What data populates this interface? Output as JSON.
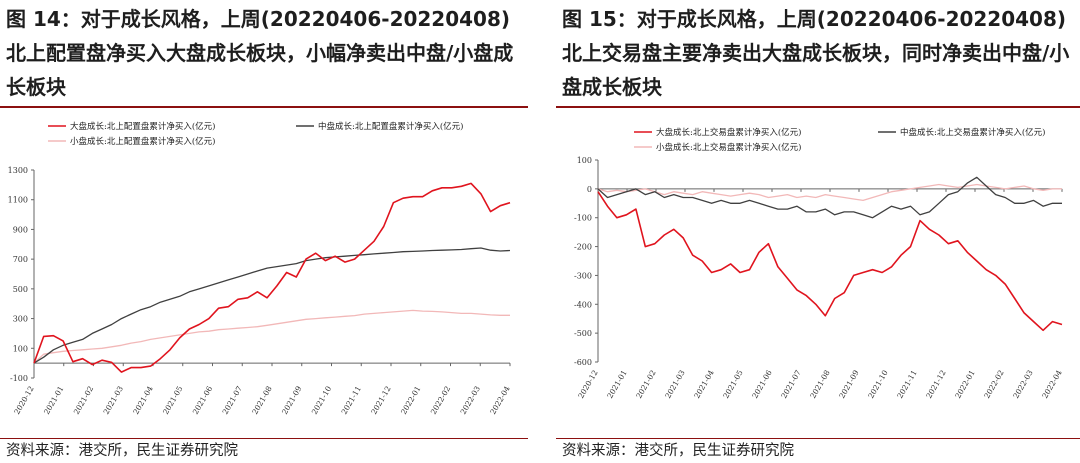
{
  "figures": [
    {
      "id": "fig14",
      "title": "图 14：对于成长风格，上周(20220406-20220408)北上配置盘净买入大盘成长板块，小幅净卖出中盘/小盘成长板块",
      "source": "资料来源：港交所，民生证券研究院"
    },
    {
      "id": "fig15",
      "title": "图 15：对于成长风格，上周(20220406-20220408)北上交易盘主要净卖出大盘成长板块，同时净卖出中盘/小盘成长板块",
      "source": "资料来源：港交所，民生证券研究院"
    }
  ],
  "chart_data": [
    {
      "type": "line",
      "xlabels": [
        "2020-12",
        "2021-01",
        "2021-02",
        "2021-03",
        "2021-04",
        "2021-05",
        "2021-06",
        "2021-07",
        "2021-08",
        "2021-09",
        "2021-10",
        "2021-11",
        "2021-12",
        "2022-01",
        "2022-02",
        "2022-03",
        "2022-04"
      ],
      "ylim": [
        -100,
        1300
      ],
      "yticks": [
        -100,
        100,
        300,
        500,
        700,
        900,
        1100,
        1300
      ],
      "legend_position": "top",
      "series": [
        {
          "name": "大盘成长:北上配置盘累计净买入(亿元)",
          "color": "#e0141e",
          "values": [
            0,
            180,
            185,
            150,
            10,
            30,
            -10,
            20,
            5,
            -60,
            -30,
            -30,
            -20,
            30,
            90,
            170,
            230,
            260,
            300,
            370,
            380,
            430,
            440,
            480,
            440,
            520,
            610,
            580,
            700,
            740,
            690,
            720,
            680,
            700,
            760,
            820,
            920,
            1080,
            1110,
            1120,
            1120,
            1160,
            1180,
            1180,
            1190,
            1210,
            1140,
            1020,
            1060,
            1080
          ]
        },
        {
          "name": "中盘成长:北上配置盘累计净买入(亿元)",
          "color": "#404040",
          "values": [
            0,
            40,
            90,
            120,
            140,
            160,
            200,
            230,
            260,
            300,
            330,
            360,
            380,
            410,
            430,
            450,
            480,
            500,
            520,
            540,
            560,
            580,
            600,
            620,
            640,
            650,
            660,
            670,
            690,
            700,
            710,
            715,
            720,
            725,
            730,
            735,
            740,
            745,
            750,
            752,
            755,
            758,
            760,
            762,
            765,
            770,
            775,
            760,
            755,
            758
          ]
        },
        {
          "name": "小盘成长:北上配置盘累计净买入(亿元)",
          "color": "#f2b8b8",
          "values": [
            0,
            60,
            70,
            80,
            85,
            90,
            95,
            100,
            110,
            120,
            135,
            145,
            160,
            170,
            180,
            190,
            200,
            210,
            215,
            225,
            230,
            235,
            240,
            245,
            255,
            265,
            275,
            285,
            295,
            300,
            305,
            310,
            315,
            320,
            330,
            335,
            340,
            345,
            350,
            355,
            350,
            348,
            345,
            340,
            335,
            335,
            330,
            325,
            322,
            322
          ]
        }
      ]
    },
    {
      "type": "line",
      "xlabels": [
        "2020-12",
        "2021-01",
        "2021-02",
        "2021-03",
        "2021-04",
        "2021-05",
        "2021-06",
        "2021-07",
        "2021-08",
        "2021-09",
        "2021-10",
        "2021-11",
        "2021-12",
        "2022-01",
        "2022-02",
        "2022-03",
        "2022-04"
      ],
      "ylim": [
        -600,
        100
      ],
      "yticks": [
        -600,
        -500,
        -400,
        -300,
        -200,
        -100,
        0,
        100
      ],
      "legend_position": "top",
      "series": [
        {
          "name": "大盘成长:北上交易盘累计净买入(亿元)",
          "color": "#e0141e",
          "values": [
            -10,
            -60,
            -100,
            -90,
            -70,
            -200,
            -190,
            -160,
            -140,
            -170,
            -230,
            -250,
            -290,
            -280,
            -260,
            -290,
            -280,
            -220,
            -190,
            -270,
            -310,
            -350,
            -370,
            -400,
            -440,
            -380,
            -360,
            -300,
            -290,
            -280,
            -290,
            -270,
            -230,
            -200,
            -110,
            -140,
            -160,
            -190,
            -180,
            -220,
            -250,
            -280,
            -300,
            -330,
            -380,
            -430,
            -460,
            -490,
            -460,
            -470
          ]
        },
        {
          "name": "中盘成长:北上交易盘累计净买入(亿元)",
          "color": "#404040",
          "values": [
            0,
            -30,
            -20,
            -10,
            0,
            -20,
            -10,
            -30,
            -20,
            -30,
            -30,
            -40,
            -50,
            -40,
            -50,
            -50,
            -40,
            -50,
            -60,
            -70,
            -70,
            -60,
            -80,
            -80,
            -70,
            -90,
            -80,
            -80,
            -90,
            -100,
            -80,
            -60,
            -70,
            -60,
            -90,
            -80,
            -50,
            -20,
            -10,
            20,
            40,
            10,
            -20,
            -30,
            -50,
            -50,
            -40,
            -60,
            -50,
            -50
          ]
        },
        {
          "name": "小盘成长:北上交易盘累计净买入(亿元)",
          "color": "#f2b8b8",
          "values": [
            0,
            -10,
            -5,
            -10,
            -5,
            0,
            -10,
            -20,
            -10,
            -15,
            -20,
            -10,
            -15,
            -20,
            -25,
            -20,
            -15,
            -20,
            -30,
            -25,
            -20,
            -30,
            -25,
            -30,
            -20,
            -25,
            -30,
            -35,
            -40,
            -30,
            -20,
            -10,
            -5,
            0,
            5,
            10,
            15,
            10,
            5,
            10,
            15,
            10,
            5,
            0,
            5,
            10,
            0,
            -5,
            0,
            0
          ]
        }
      ]
    }
  ]
}
